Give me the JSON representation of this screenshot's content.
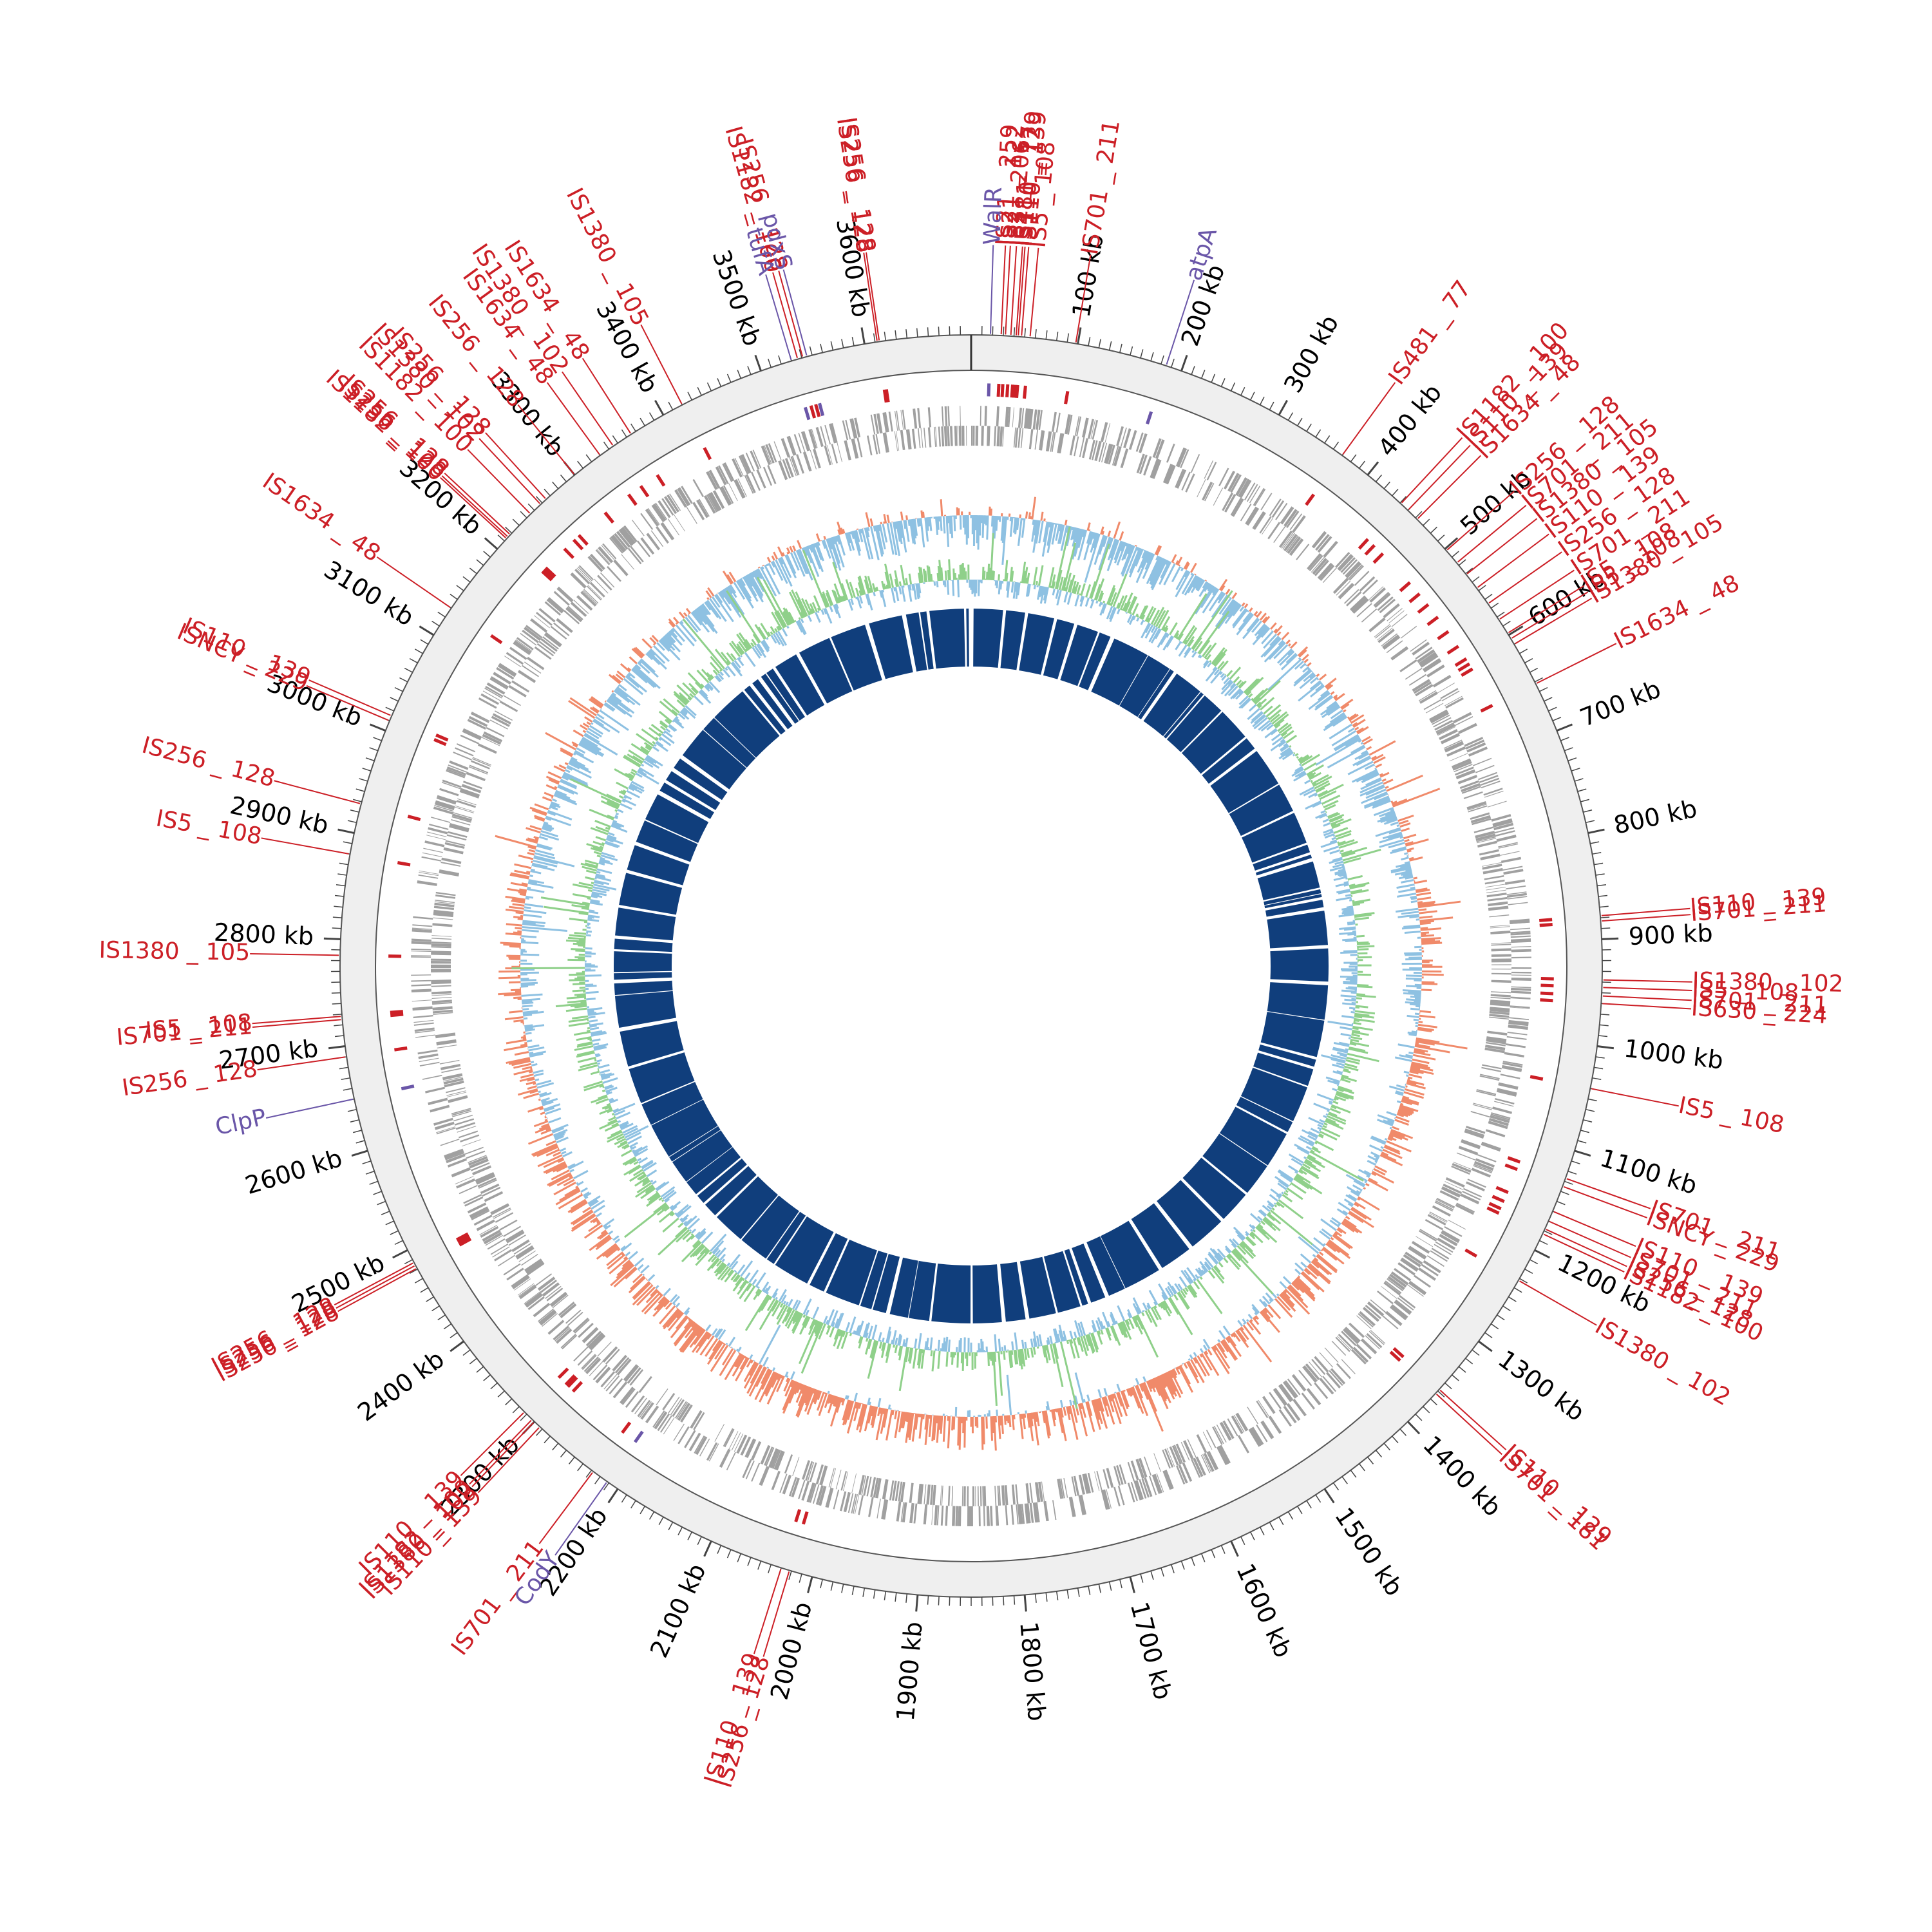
{
  "map": {
    "genome_length_kb": 3700,
    "tick_unit": "kb",
    "major_ticks_kb": [
      100,
      200,
      300,
      400,
      500,
      600,
      700,
      800,
      900,
      1000,
      1100,
      1200,
      1300,
      1400,
      1500,
      1600,
      1700,
      1800,
      1900,
      2000,
      2100,
      2200,
      2300,
      2400,
      2500,
      2600,
      2700,
      2800,
      2900,
      3000,
      3100,
      3200,
      3300,
      3400,
      3500,
      3600
    ],
    "tick_labels": [
      "100 kb",
      "200 kb",
      "300 kb",
      "400 kb",
      "500 kb",
      "600 kb",
      "700 kb",
      "800 kb",
      "900 kb",
      "1000 kb",
      "1100 kb",
      "1200 kb",
      "1300 kb",
      "1400 kb",
      "1500 kb",
      "1600 kb",
      "1700 kb",
      "1800 kb",
      "1900 kb",
      "2000 kb",
      "2100 kb",
      "2200 kb",
      "2300 kb",
      "2400 kb",
      "2500 kb",
      "2600 kb",
      "2700 kb",
      "2800 kb",
      "2900 kb",
      "3000 kb",
      "3100 kb",
      "3200 kb",
      "3300 kb",
      "3400 kb",
      "3500 kb",
      "3600 kb"
    ],
    "colors": {
      "insertion_sequence": "#cc1f26",
      "gene": "#6a56a8",
      "backbone_ring": "#efefef",
      "cds_track": "#a0a0a0",
      "gc_positive": "#f08a6a",
      "gc_negative": "#8ec1e2",
      "skew_positive": "#8fd08a",
      "skew_negative": "#8ec1e2",
      "inner_blocks": "#103e7c"
    }
  },
  "insertion_sequences": [
    {
      "name": "IS256_128",
      "position_kb": 3612
    },
    {
      "name": "IS256_128",
      "position_kb": 3614
    },
    {
      "name": "IS21_259",
      "position_kb": 28
    },
    {
      "name": "IS21_122",
      "position_kb": 32
    },
    {
      "name": "IS3_206",
      "position_kb": 37
    },
    {
      "name": "IS481_77",
      "position_kb": 42
    },
    {
      "name": "IS110_129",
      "position_kb": 44
    },
    {
      "name": "IS110_139",
      "position_kb": 47
    },
    {
      "name": "IS5_108",
      "position_kb": 55
    },
    {
      "name": "IS701_211",
      "position_kb": 98
    },
    {
      "name": "IS481_77",
      "position_kb": 370
    },
    {
      "name": "IS1182_100",
      "position_kb": 441
    },
    {
      "name": "IS110_139",
      "position_kb": 450
    },
    {
      "name": "IS1634_48",
      "position_kb": 462
    },
    {
      "name": "IS256_128",
      "position_kb": 502
    },
    {
      "name": "IS701_211",
      "position_kb": 517
    },
    {
      "name": "IS1380_105",
      "position_kb": 531
    },
    {
      "name": "IS110_139",
      "position_kb": 547
    },
    {
      "name": "IS256_128",
      "position_kb": 565
    },
    {
      "name": "IS701_211",
      "position_kb": 583
    },
    {
      "name": "IS5_108",
      "position_kb": 598
    },
    {
      "name": "IS5_108",
      "position_kb": 604
    },
    {
      "name": "IS1380_105",
      "position_kb": 610
    },
    {
      "name": "IS1634_48",
      "position_kb": 652
    },
    {
      "name": "IS110_139",
      "position_kb": 878
    },
    {
      "name": "IS701_211",
      "position_kb": 883
    },
    {
      "name": "IS1380_102",
      "position_kb": 938
    },
    {
      "name": "IS5_108",
      "position_kb": 945
    },
    {
      "name": "IS701_211",
      "position_kb": 953
    },
    {
      "name": "IS630_224",
      "position_kb": 960
    },
    {
      "name": "IS5_108",
      "position_kb": 1040
    },
    {
      "name": "IS701_211",
      "position_kb": 1127
    },
    {
      "name": "ISNCY_229",
      "position_kb": 1135
    },
    {
      "name": "IS110_139",
      "position_kb": 1160
    },
    {
      "name": "IS701_211",
      "position_kb": 1170
    },
    {
      "name": "IS256_128",
      "position_kb": 1178
    },
    {
      "name": "IS1182_100",
      "position_kb": 1183
    },
    {
      "name": "IS1380_102",
      "position_kb": 1232
    },
    {
      "name": "IS110_129",
      "position_kb": 1358
    },
    {
      "name": "IS701_181",
      "position_kb": 1363
    },
    {
      "name": "IS256_128",
      "position_kb": 2022
    },
    {
      "name": "IS110_139",
      "position_kb": 2030
    },
    {
      "name": "IS701_211",
      "position_kb": 2228
    },
    {
      "name": "IS110_139",
      "position_kb": 2293
    },
    {
      "name": "IS1380_102",
      "position_kb": 2300
    },
    {
      "name": "IS1182_100",
      "position_kb": 2303
    },
    {
      "name": "IS110_139",
      "position_kb": 2313
    },
    {
      "name": "IS256_128",
      "position_kb": 2481
    },
    {
      "name": "IS256_128",
      "position_kb": 2484
    },
    {
      "name": "IS256_128",
      "position_kb": 2487
    },
    {
      "name": "IS256_128",
      "position_kb": 2690
    },
    {
      "name": "IS701_211",
      "position_kb": 2725
    },
    {
      "name": "IS5_108",
      "position_kb": 2728
    },
    {
      "name": "IS1380_105",
      "position_kb": 2785
    },
    {
      "name": "IS5_108",
      "position_kb": 2880
    },
    {
      "name": "IS256_128",
      "position_kb": 2928
    },
    {
      "name": "ISNCY_229",
      "position_kb": 3010
    },
    {
      "name": "IS110_139",
      "position_kb": 3015
    },
    {
      "name": "IS1634_48",
      "position_kb": 3130
    },
    {
      "name": "IS1182_100",
      "position_kb": 3213
    },
    {
      "name": "IS256_128",
      "position_kb": 3215
    },
    {
      "name": "IS256_128",
      "position_kb": 3218
    },
    {
      "name": "IS1182_100",
      "position_kb": 3245
    },
    {
      "name": "IS1380_102",
      "position_kb": 3258
    },
    {
      "name": "IS256_128",
      "position_kb": 3265
    },
    {
      "name": "IS256_128",
      "position_kb": 3300
    },
    {
      "name": "IS1634_48",
      "position_kb": 3330
    },
    {
      "name": "IS1380_102",
      "position_kb": 3345
    },
    {
      "name": "IS1634_48",
      "position_kb": 3365
    },
    {
      "name": "IS1380_105",
      "position_kb": 3420
    },
    {
      "name": "IS1182_100",
      "position_kb": 3536
    },
    {
      "name": "IS256_128",
      "position_kb": 3541
    }
  ],
  "genes": [
    {
      "name": "tufA",
      "position_kb": 3530
    },
    {
      "name": "pdxS",
      "position_kb": 3545
    },
    {
      "name": "WalR",
      "position_kb": 18
    },
    {
      "name": "atpA",
      "position_kb": 185
    },
    {
      "name": "ClpP",
      "position_kb": 2650
    },
    {
      "name": "CodY",
      "position_kb": 2212
    }
  ]
}
